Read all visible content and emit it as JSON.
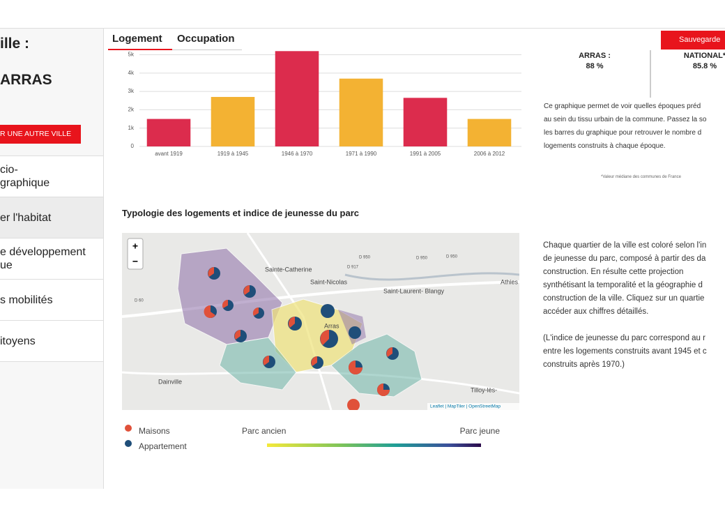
{
  "sidebar": {
    "title": "ille :",
    "city": "ARRAS",
    "button": "R UNE AUTRE VILLE",
    "menu": [
      "cio-\ngraphique",
      "er l'habitat",
      "e développement\nue",
      "s mobilités",
      "itoyens"
    ]
  },
  "tabs": [
    "Logement",
    "Occupation"
  ],
  "save_button": "Sauvegarde",
  "stats": [
    {
      "label": "ARRAS :",
      "value": "88 %"
    },
    {
      "label": "NATIONAL*",
      "value": "85.8 %"
    }
  ],
  "chart_description": [
    "Ce graphique permet de voir quelles époques préd",
    "au sein du tissu urbain de la commune. Passez la so",
    "les barres du graphique pour retrouver le nombre d",
    "logements construits à chaque époque."
  ],
  "footnote": "*Valeur médiane des communes de France",
  "chart_data": {
    "type": "bar",
    "categories": [
      "avant 1919",
      "1919 à 1945",
      "1946 à 1970",
      "1971 à 1990",
      "1991 à 2005",
      "2006 à 2012"
    ],
    "values": [
      1500,
      2700,
      5200,
      3700,
      2650,
      1500
    ],
    "colors": [
      "#dc2c4d",
      "#f3b233",
      "#dc2c4d",
      "#f3b233",
      "#dc2c4d",
      "#f3b233"
    ],
    "ylim": [
      0,
      5200
    ],
    "yticks": [
      0,
      {
        "value": 1000,
        "label": "1k"
      },
      {
        "value": 2000,
        "label": "2k"
      },
      {
        "value": 3000,
        "label": "3k"
      },
      {
        "value": 4000,
        "label": "4k"
      },
      {
        "value": 5000,
        "label": "5k"
      }
    ],
    "grid": true
  },
  "map_section": {
    "title": "Typologie des logements et indice de jeunesse du parc",
    "zoom_in": "+",
    "zoom_out": "−",
    "places": [
      "Sainte-Catherine",
      "Saint-Nicolas",
      "Saint-Laurent-\nBlangy",
      "Arras",
      "Dainville",
      "Athies",
      "Tilloy-lès-"
    ],
    "roads": [
      "D 917",
      "D 950",
      "D 950",
      "D 950",
      "D 60"
    ],
    "attribution": "Leaflet | MapTiler | OpenStreetMap",
    "legend": {
      "houses": "Maisons",
      "apartments": "Appartement",
      "gradient_start": "Parc ancien",
      "gradient_end": "Parc jeune"
    },
    "description": [
      "Chaque quartier de la ville est coloré selon l'in",
      "de jeunesse du parc, composé à partir des da",
      "construction. En résulte cette projection",
      "synthétisant la temporalité et la géographie d",
      "construction de la ville. Cliquez sur un quartie",
      "accéder aux chiffres détaillés."
    ],
    "note": [
      "(L'indice de jeunesse du parc correspond au r",
      "entre les logements construits avant 1945 et c",
      "construits après 1970.)"
    ]
  }
}
